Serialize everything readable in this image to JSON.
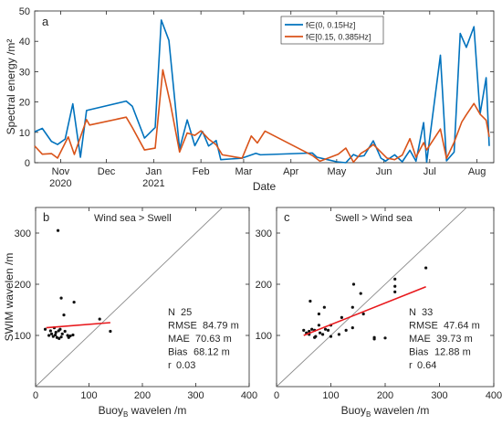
{
  "chart_data": [
    {
      "panel": "a",
      "type": "line",
      "xlabel": "Date",
      "ylabel": "Spectral energy /m²",
      "ylim": [
        0,
        50
      ],
      "yticks": [
        0,
        10,
        20,
        30,
        40,
        50
      ],
      "x_axis_type": "date",
      "xlim": [
        "2020-10-15",
        "2021-08-12"
      ],
      "xticks": [
        {
          "date": "2020-11-01",
          "label": "Nov",
          "sub": "2020"
        },
        {
          "date": "2020-12-01",
          "label": "Dec",
          "sub": ""
        },
        {
          "date": "2021-01-01",
          "label": "Jan",
          "sub": "2021"
        },
        {
          "date": "2021-02-01",
          "label": "Feb",
          "sub": ""
        },
        {
          "date": "2021-03-01",
          "label": "Mar",
          "sub": ""
        },
        {
          "date": "2021-04-01",
          "label": "Apr",
          "sub": ""
        },
        {
          "date": "2021-05-01",
          "label": "May",
          "sub": ""
        },
        {
          "date": "2021-06-01",
          "label": "Jun",
          "sub": ""
        },
        {
          "date": "2021-07-01",
          "label": "Jul",
          "sub": ""
        },
        {
          "date": "2021-08-01",
          "label": "Aug",
          "sub": ""
        }
      ],
      "legend_position": "top-right",
      "grid": false,
      "series": [
        {
          "name": "f∈(0, 0.15Hz]",
          "color": "#0072BD",
          "points": [
            [
              "2020-10-15",
              10.2
            ],
            [
              "2020-10-20",
              11.3
            ],
            [
              "2020-10-26",
              7.0
            ],
            [
              "2020-10-30",
              6.0
            ],
            [
              "2020-11-04",
              7.8
            ],
            [
              "2020-11-09",
              19.4
            ],
            [
              "2020-11-14",
              1.8
            ],
            [
              "2020-11-18",
              17.2
            ],
            [
              "2020-12-14",
              20.3
            ],
            [
              "2020-12-18",
              18.6
            ],
            [
              "2020-12-26",
              8.1
            ],
            [
              "2021-01-02",
              11.6
            ],
            [
              "2021-01-06",
              47.0
            ],
            [
              "2021-01-11",
              40.3
            ],
            [
              "2021-01-18",
              4.5
            ],
            [
              "2021-01-23",
              14.1
            ],
            [
              "2021-01-28",
              5.6
            ],
            [
              "2021-02-02",
              10.3
            ],
            [
              "2021-02-06",
              5.5
            ],
            [
              "2021-02-11",
              7.3
            ],
            [
              "2021-02-14",
              1.0
            ],
            [
              "2021-02-28",
              1.5
            ],
            [
              "2021-03-09",
              3.1
            ],
            [
              "2021-03-12",
              2.6
            ],
            [
              "2021-04-15",
              3.2
            ],
            [
              "2021-04-18",
              1.8
            ],
            [
              "2021-04-25",
              1.0
            ],
            [
              "2021-05-01",
              0.3
            ],
            [
              "2021-05-07",
              0.0
            ],
            [
              "2021-05-12",
              2.7
            ],
            [
              "2021-05-15",
              2.0
            ],
            [
              "2021-05-19",
              2.3
            ],
            [
              "2021-05-25",
              7.2
            ],
            [
              "2021-05-30",
              1.5
            ],
            [
              "2021-06-02",
              0.5
            ],
            [
              "2021-06-08",
              2.6
            ],
            [
              "2021-06-13",
              0.3
            ],
            [
              "2021-06-18",
              4.1
            ],
            [
              "2021-06-22",
              0.5
            ],
            [
              "2021-06-27",
              13.2
            ],
            [
              "2021-06-29",
              0.2
            ],
            [
              "2021-07-08",
              35.4
            ],
            [
              "2021-07-12",
              0.6
            ],
            [
              "2021-07-17",
              3.5
            ],
            [
              "2021-07-21",
              42.6
            ],
            [
              "2021-07-25",
              38.0
            ],
            [
              "2021-07-30",
              44.8
            ],
            [
              "2021-08-03",
              16.0
            ],
            [
              "2021-08-07",
              28.0
            ],
            [
              "2021-08-09",
              5.5
            ]
          ]
        },
        {
          "name": "f∈[0.15, 0.385Hz]",
          "color": "#D95319",
          "points": [
            [
              "2020-10-15",
              5.5
            ],
            [
              "2020-10-20",
              2.8
            ],
            [
              "2020-10-26",
              3.0
            ],
            [
              "2020-10-30",
              1.5
            ],
            [
              "2020-11-06",
              8.5
            ],
            [
              "2020-11-10",
              2.7
            ],
            [
              "2020-11-18",
              14.2
            ],
            [
              "2020-11-20",
              12.4
            ],
            [
              "2020-12-14",
              15.0
            ],
            [
              "2020-12-18",
              11.6
            ],
            [
              "2020-12-26",
              4.2
            ],
            [
              "2021-01-02",
              4.8
            ],
            [
              "2021-01-07",
              30.6
            ],
            [
              "2021-01-12",
              19.4
            ],
            [
              "2021-01-18",
              3.5
            ],
            [
              "2021-01-23",
              9.8
            ],
            [
              "2021-01-28",
              9.0
            ],
            [
              "2021-02-01",
              10.5
            ],
            [
              "2021-02-06",
              7.8
            ],
            [
              "2021-02-11",
              5.9
            ],
            [
              "2021-02-15",
              2.6
            ],
            [
              "2021-02-28",
              1.5
            ],
            [
              "2021-03-06",
              8.8
            ],
            [
              "2021-03-10",
              6.5
            ],
            [
              "2021-03-15",
              10.4
            ],
            [
              "2021-04-15",
              2.4
            ],
            [
              "2021-04-20",
              0.5
            ],
            [
              "2021-05-02",
              2.8
            ],
            [
              "2021-05-07",
              4.8
            ],
            [
              "2021-05-12",
              0.2
            ],
            [
              "2021-05-17",
              3.1
            ],
            [
              "2021-05-20",
              4.0
            ],
            [
              "2021-05-25",
              6.0
            ],
            [
              "2021-06-03",
              1.5
            ],
            [
              "2021-06-08",
              1.0
            ],
            [
              "2021-06-13",
              2.5
            ],
            [
              "2021-06-18",
              7.9
            ],
            [
              "2021-06-22",
              1.8
            ],
            [
              "2021-06-27",
              6.6
            ],
            [
              "2021-06-29",
              4.2
            ],
            [
              "2021-07-08",
              11.1
            ],
            [
              "2021-07-12",
              1.4
            ],
            [
              "2021-07-17",
              6.7
            ],
            [
              "2021-07-22",
              13.4
            ],
            [
              "2021-07-25",
              15.8
            ],
            [
              "2021-07-30",
              19.5
            ],
            [
              "2021-08-03",
              16.0
            ],
            [
              "2021-08-07",
              14.0
            ],
            [
              "2021-08-09",
              8.5
            ]
          ]
        }
      ]
    },
    {
      "panel": "b",
      "type": "scatter",
      "title": "Wind sea > Swell",
      "xlabel": "Buoy",
      "xlabel_sub": "B",
      "xlabel_suffix": " wavelen /m",
      "ylabel": "SWIM wavelen /m",
      "xlim": [
        0,
        400
      ],
      "ylim": [
        0,
        350
      ],
      "xticks": [
        0,
        100,
        200,
        300,
        400
      ],
      "yticks": [
        100,
        200,
        300
      ],
      "points": [
        [
          42,
          305
        ],
        [
          48,
          173
        ],
        [
          72,
          165
        ],
        [
          53,
          140
        ],
        [
          120,
          132
        ],
        [
          18,
          112
        ],
        [
          28,
          109
        ],
        [
          35,
          115
        ],
        [
          30,
          103
        ],
        [
          38,
          106
        ],
        [
          43,
          109
        ],
        [
          46,
          112
        ],
        [
          50,
          103
        ],
        [
          55,
          108
        ],
        [
          33,
          98
        ],
        [
          40,
          96
        ],
        [
          48,
          97
        ],
        [
          60,
          100
        ],
        [
          62,
          96
        ],
        [
          65,
          99
        ],
        [
          70,
          101
        ],
        [
          25,
          100
        ],
        [
          44,
          94
        ],
        [
          37,
          101
        ],
        [
          140,
          108
        ]
      ],
      "fit_line": {
        "color": "#E8181C",
        "x": [
          20,
          140
        ],
        "y": [
          115,
          125
        ]
      },
      "identity_line": true,
      "stats": [
        {
          "label": "N",
          "value": "25"
        },
        {
          "label": "RMSE",
          "value": "84.79 m"
        },
        {
          "label": "MAE",
          "value": "70.63 m"
        },
        {
          "label": "Bias",
          "value": "68.12 m"
        },
        {
          "label": "r",
          "value": "0.03"
        }
      ]
    },
    {
      "panel": "c",
      "type": "scatter",
      "title": "Swell > Wind sea",
      "xlabel": "Buoy",
      "xlabel_sub": "B",
      "xlabel_suffix": " wavelen /m",
      "ylabel": "",
      "xlim": [
        0,
        400
      ],
      "ylim": [
        0,
        350
      ],
      "xticks": [
        0,
        100,
        200,
        300,
        400
      ],
      "yticks": [
        100,
        200,
        300
      ],
      "points": [
        [
          275,
          232
        ],
        [
          218,
          210
        ],
        [
          218,
          196
        ],
        [
          218,
          185
        ],
        [
          142,
          200
        ],
        [
          155,
          182
        ],
        [
          62,
          167
        ],
        [
          88,
          155
        ],
        [
          140,
          155
        ],
        [
          160,
          142
        ],
        [
          78,
          142
        ],
        [
          100,
          120
        ],
        [
          120,
          135
        ],
        [
          90,
          112
        ],
        [
          50,
          110
        ],
        [
          55,
          105
        ],
        [
          60,
          102
        ],
        [
          70,
          110
        ],
        [
          72,
          98
        ],
        [
          78,
          120
        ],
        [
          80,
          105
        ],
        [
          85,
          102
        ],
        [
          100,
          98
        ],
        [
          128,
          110
        ],
        [
          140,
          115
        ],
        [
          180,
          96
        ],
        [
          180,
          93
        ],
        [
          200,
          95
        ],
        [
          70,
          96
        ],
        [
          65,
          112
        ],
        [
          60,
          108
        ],
        [
          95,
          110
        ],
        [
          115,
          102
        ]
      ],
      "fit_line": {
        "color": "#E8181C",
        "x": [
          50,
          275
        ],
        "y": [
          100,
          195
        ]
      },
      "identity_line": true,
      "stats": [
        {
          "label": "N",
          "value": "33"
        },
        {
          "label": "RMSE",
          "value": "47.64 m"
        },
        {
          "label": "MAE",
          "value": "39.73 m"
        },
        {
          "label": "Bias",
          "value": "12.88 m"
        },
        {
          "label": "r",
          "value": "0.64"
        }
      ]
    }
  ]
}
